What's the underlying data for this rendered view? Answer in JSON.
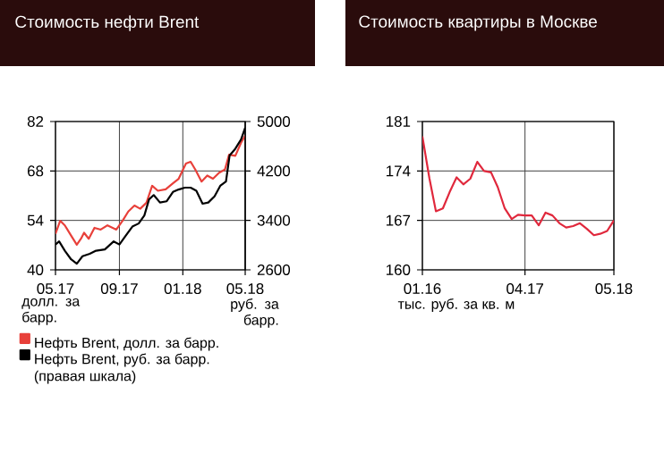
{
  "chart_data": [
    {
      "type": "line",
      "title": "Стоимость нефти Brent",
      "ylabel": "долл. за барр.",
      "y2label": "руб. за барр.",
      "xlim": [
        "2017-05-01",
        "2018-05-01"
      ],
      "xticks": [
        {
          "value": "2017-05-01",
          "label": "05.17"
        },
        {
          "value": "2017-09-01",
          "label": "09.17"
        },
        {
          "value": "2018-01-01",
          "label": "01.18"
        },
        {
          "value": "2018-05-01",
          "label": "05.18"
        }
      ],
      "ylim": [
        40,
        82
      ],
      "yticks": [
        40,
        54,
        68,
        82
      ],
      "y2lim": [
        2600,
        5000
      ],
      "y2ticks": [
        2600,
        3400,
        4200,
        5000
      ],
      "grid": true,
      "legend": "bottom",
      "series": [
        {
          "name": "Нефть Brent, долл. за барр.",
          "color": "#e8403a",
          "x": [
            "2017-05-01",
            "2017-05-10",
            "2017-05-19",
            "2017-05-31",
            "2017-06-11",
            "2017-06-19",
            "2017-06-25",
            "2017-07-04",
            "2017-07-15",
            "2017-07-27",
            "2017-08-09",
            "2017-08-26",
            "2017-09-07",
            "2017-09-18",
            "2017-09-30",
            "2017-10-11",
            "2017-10-23",
            "2017-11-03",
            "2017-11-14",
            "2017-11-29",
            "2017-12-13",
            "2017-12-24",
            "2018-01-07",
            "2018-01-16",
            "2018-01-25",
            "2018-02-06",
            "2018-02-17",
            "2018-02-28",
            "2018-03-12",
            "2018-03-23",
            "2018-03-31",
            "2018-04-12",
            "2018-04-23",
            "2018-05-01"
          ],
          "values": [
            50.2,
            53.9,
            52.6,
            49.7,
            47.1,
            48.8,
            50.5,
            48.8,
            51.9,
            51.4,
            52.6,
            51.4,
            53.9,
            56.5,
            58.2,
            57.3,
            59,
            63.8,
            62.4,
            62.8,
            64.5,
            65.8,
            70.1,
            70.6,
            68.4,
            65,
            66.7,
            65.8,
            67.5,
            68.4,
            72.6,
            72.3,
            76,
            78
          ]
        },
        {
          "name": "Нефть Brent, руб. за барр. (правая шкала)",
          "color": "#000000",
          "axis": "y2",
          "x": [
            "2017-05-01",
            "2017-05-08",
            "2017-05-19",
            "2017-05-31",
            "2017-06-11",
            "2017-06-22",
            "2017-07-06",
            "2017-07-18",
            "2017-08-04",
            "2017-08-21",
            "2017-09-01",
            "2017-09-13",
            "2017-09-26",
            "2017-10-08",
            "2017-10-19",
            "2017-10-28",
            "2017-11-06",
            "2017-11-18",
            "2017-12-01",
            "2017-12-13",
            "2017-12-24",
            "2018-01-05",
            "2018-01-16",
            "2018-01-27",
            "2018-02-08",
            "2018-02-19",
            "2018-03-03",
            "2018-03-14",
            "2018-03-25",
            "2018-04-01",
            "2018-04-12",
            "2018-04-23",
            "2018-05-01"
          ],
          "values": [
            3010,
            3060,
            2910,
            2770,
            2700,
            2820,
            2860,
            2910,
            2930,
            3060,
            3010,
            3150,
            3300,
            3350,
            3480,
            3740,
            3810,
            3690,
            3710,
            3860,
            3900,
            3930,
            3930,
            3880,
            3670,
            3690,
            3790,
            3960,
            4030,
            4450,
            4560,
            4710,
            4900
          ]
        }
      ]
    },
    {
      "type": "line",
      "title": "Стоимость квартиры в Москве",
      "ylabel": "тыс. руб. за кв. м",
      "xlim": [
        "2016-01",
        "2018-05"
      ],
      "xticks": [
        {
          "value": "2016-01",
          "label": "01.16"
        },
        {
          "value": "2017-04",
          "label": "04.17"
        },
        {
          "value": "2018-05",
          "label": "05.18"
        }
      ],
      "ylim": [
        160,
        181
      ],
      "yticks": [
        160,
        167,
        174,
        181
      ],
      "grid": true,
      "x": [
        "2016-01",
        "2016-02",
        "2016-03",
        "2016-04",
        "2016-05",
        "2016-06",
        "2016-07",
        "2016-08",
        "2016-09",
        "2016-10",
        "2016-11",
        "2016-12",
        "2017-01",
        "2017-02",
        "2017-03",
        "2017-04",
        "2017-05",
        "2017-06",
        "2017-07",
        "2017-08",
        "2017-09",
        "2017-10",
        "2017-11",
        "2017-12",
        "2018-01",
        "2018-02",
        "2018-03",
        "2018-04",
        "2018-05"
      ],
      "series": [
        {
          "color": "#e0283c",
          "values": [
            178.9,
            173,
            168.3,
            168.7,
            171,
            173.1,
            172.1,
            172.9,
            175.3,
            174,
            173.8,
            171.7,
            168.7,
            167.2,
            167.8,
            167.7,
            167.7,
            166.3,
            168.1,
            167.7,
            166.6,
            166,
            166.2,
            166.6,
            165.8,
            164.9,
            165.1,
            165.5,
            167
          ]
        }
      ]
    }
  ]
}
